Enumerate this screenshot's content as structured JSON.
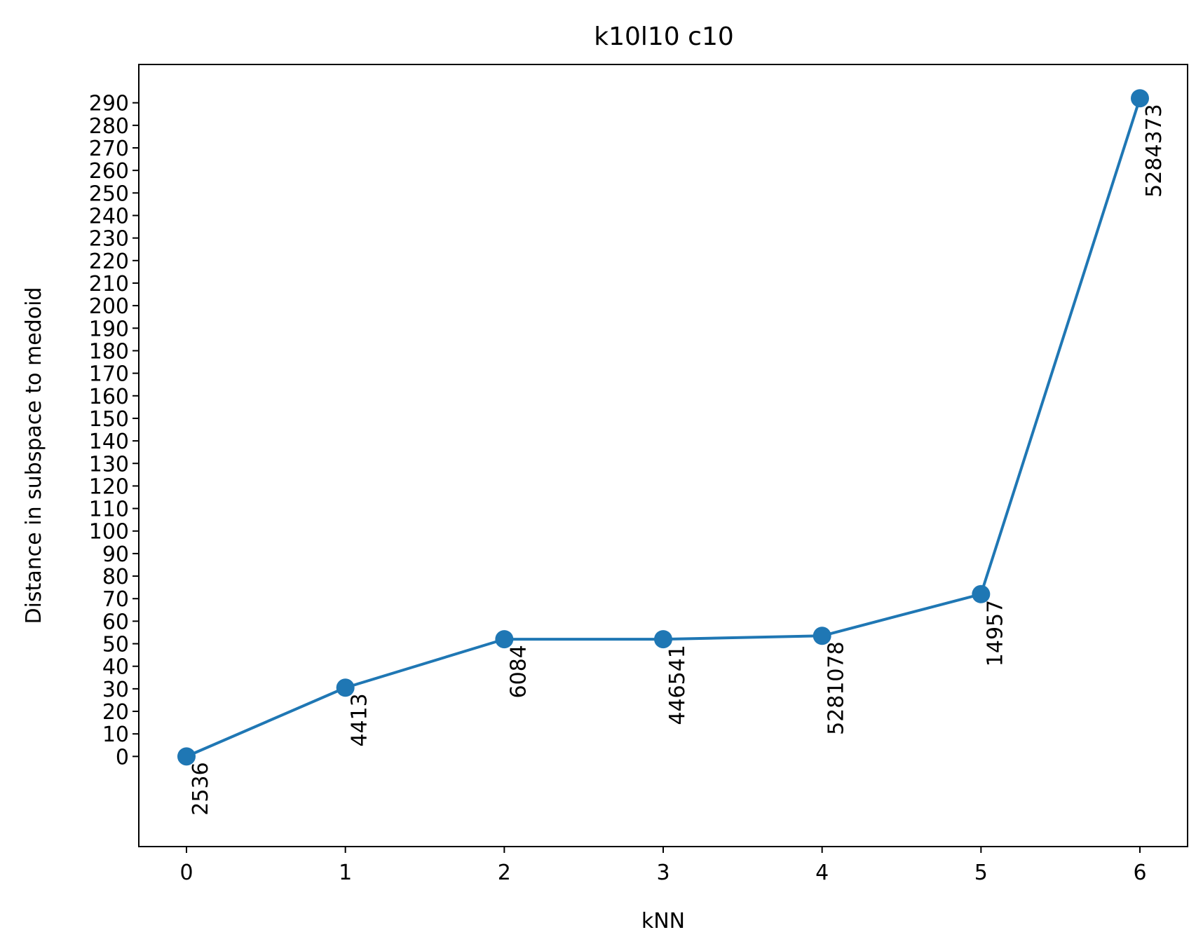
{
  "chart_data": {
    "type": "line",
    "title": "k10l10 c10",
    "xlabel": "kNN",
    "ylabel": "Distance in subspace to medoid",
    "x": [
      0,
      1,
      2,
      3,
      4,
      5,
      6
    ],
    "xticks": [
      "0",
      "1",
      "2",
      "3",
      "4",
      "5",
      "6"
    ],
    "yticks": [
      "0",
      "10",
      "20",
      "30",
      "40",
      "50",
      "60",
      "70",
      "80",
      "90",
      "100",
      "110",
      "120",
      "130",
      "140",
      "150",
      "160",
      "170",
      "180",
      "190",
      "200",
      "210",
      "220",
      "230",
      "240",
      "250",
      "260",
      "270",
      "280",
      "290"
    ],
    "series": [
      {
        "values": [
          0,
          30.5,
          52,
          52,
          53.5,
          72,
          292
        ],
        "labels": [
          "2536",
          "4413",
          "6084",
          "446541",
          "5281078",
          "14957",
          "5284373"
        ],
        "color": "#1f77b4"
      }
    ],
    "xlim": [
      -0.3,
      6.3
    ],
    "ylim": [
      -40,
      307
    ],
    "grid": false,
    "marker": "circle"
  }
}
